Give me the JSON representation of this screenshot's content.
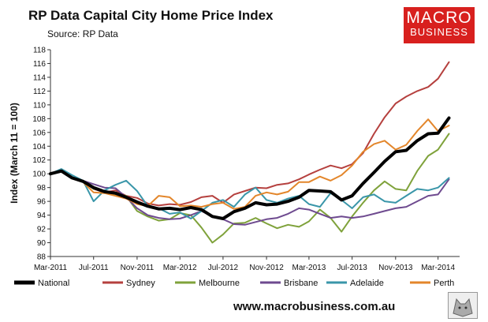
{
  "header": {
    "title": "RP Data Capital City Home Price Index",
    "source": "Source: RP Data"
  },
  "brand": {
    "line1": "MACRO",
    "line2": "BUSINESS"
  },
  "footer": {
    "website": "www.macrobusiness.com.au"
  },
  "chart_data": {
    "type": "line",
    "title": "RP Data Capital City Home Price Index",
    "subtitle": "Source: RP Data",
    "ylabel": "Index (March 11 = 100)",
    "xlabel": "",
    "ylim": [
      88,
      118
    ],
    "yticks": [
      88,
      90,
      92,
      94,
      96,
      98,
      100,
      102,
      104,
      106,
      108,
      110,
      112,
      114,
      116,
      118
    ],
    "xlim": [
      "2011-03-01",
      "2014-05-01"
    ],
    "xticks": [
      {
        "date": "2011-03-01",
        "label": "Mar-2011"
      },
      {
        "date": "2011-07-01",
        "label": "Jul-2011"
      },
      {
        "date": "2011-11-01",
        "label": "Nov-2011"
      },
      {
        "date": "2012-03-01",
        "label": "Mar-2012"
      },
      {
        "date": "2012-07-01",
        "label": "Jul-2012"
      },
      {
        "date": "2012-11-01",
        "label": "Nov-2012"
      },
      {
        "date": "2013-03-01",
        "label": "Mar-2013"
      },
      {
        "date": "2013-07-01",
        "label": "Jul-2013"
      },
      {
        "date": "2013-11-01",
        "label": "Nov-2013"
      },
      {
        "date": "2014-03-01",
        "label": "Mar-2014"
      }
    ],
    "grid": false,
    "legend_position": "bottom",
    "series": [
      {
        "name": "Sydney",
        "color": "#b5403e",
        "width": 2,
        "points": [
          [
            "2011-03-01",
            100
          ],
          [
            "2011-04-01",
            100.6
          ],
          [
            "2011-05-01",
            99.5
          ],
          [
            "2011-06-01",
            98.8
          ],
          [
            "2011-07-01",
            97.8
          ],
          [
            "2011-08-01",
            97.3
          ],
          [
            "2011-09-01",
            97.6
          ],
          [
            "2011-10-01",
            96.8
          ],
          [
            "2011-11-01",
            96.5
          ],
          [
            "2011-12-01",
            95.7
          ],
          [
            "2012-01-01",
            95.4
          ],
          [
            "2012-02-01",
            95.6
          ],
          [
            "2012-03-01",
            95.5
          ],
          [
            "2012-04-01",
            95.9
          ],
          [
            "2012-05-01",
            96.6
          ],
          [
            "2012-06-01",
            96.8
          ],
          [
            "2012-07-01",
            95.8
          ],
          [
            "2012-08-01",
            97.0
          ],
          [
            "2012-09-01",
            97.5
          ],
          [
            "2012-10-01",
            98.0
          ],
          [
            "2012-11-01",
            97.9
          ],
          [
            "2012-12-01",
            98.4
          ],
          [
            "2013-01-01",
            98.6
          ],
          [
            "2013-02-01",
            99.2
          ],
          [
            "2013-03-01",
            99.9
          ],
          [
            "2013-04-01",
            100.6
          ],
          [
            "2013-05-01",
            101.2
          ],
          [
            "2013-06-01",
            100.8
          ],
          [
            "2013-07-01",
            101.4
          ],
          [
            "2013-08-01",
            103.0
          ],
          [
            "2013-09-01",
            105.8
          ],
          [
            "2013-10-01",
            108.2
          ],
          [
            "2013-11-01",
            110.2
          ],
          [
            "2013-12-01",
            111.2
          ],
          [
            "2014-01-01",
            112.0
          ],
          [
            "2014-02-01",
            112.6
          ],
          [
            "2014-03-01",
            113.8
          ],
          [
            "2014-04-01",
            116.2
          ]
        ]
      },
      {
        "name": "Melbourne",
        "color": "#7fa23b",
        "width": 2,
        "points": [
          [
            "2011-03-01",
            100
          ],
          [
            "2011-04-01",
            100.3
          ],
          [
            "2011-05-01",
            99.4
          ],
          [
            "2011-06-01",
            98.9
          ],
          [
            "2011-07-01",
            97.8
          ],
          [
            "2011-08-01",
            97.5
          ],
          [
            "2011-09-01",
            97.0
          ],
          [
            "2011-10-01",
            96.8
          ],
          [
            "2011-11-01",
            94.6
          ],
          [
            "2011-12-01",
            93.8
          ],
          [
            "2012-01-01",
            93.2
          ],
          [
            "2012-02-01",
            93.4
          ],
          [
            "2012-03-01",
            94.3
          ],
          [
            "2012-04-01",
            94.0
          ],
          [
            "2012-05-01",
            92.2
          ],
          [
            "2012-06-01",
            90.0
          ],
          [
            "2012-07-01",
            91.2
          ],
          [
            "2012-08-01",
            92.8
          ],
          [
            "2012-09-01",
            92.9
          ],
          [
            "2012-10-01",
            93.6
          ],
          [
            "2012-11-01",
            92.8
          ],
          [
            "2012-12-01",
            92.1
          ],
          [
            "2013-01-01",
            92.6
          ],
          [
            "2013-02-01",
            92.3
          ],
          [
            "2013-03-01",
            93.1
          ],
          [
            "2013-04-01",
            94.8
          ],
          [
            "2013-05-01",
            93.6
          ],
          [
            "2013-06-01",
            91.6
          ],
          [
            "2013-07-01",
            93.8
          ],
          [
            "2013-08-01",
            95.8
          ],
          [
            "2013-09-01",
            97.6
          ],
          [
            "2013-10-01",
            98.9
          ],
          [
            "2013-11-01",
            97.8
          ],
          [
            "2013-12-01",
            97.6
          ],
          [
            "2014-01-01",
            100.4
          ],
          [
            "2014-02-01",
            102.6
          ],
          [
            "2014-03-01",
            103.5
          ],
          [
            "2014-04-01",
            105.8
          ]
        ]
      },
      {
        "name": "Brisbane",
        "color": "#6e4a8f",
        "width": 2,
        "points": [
          [
            "2011-03-01",
            100
          ],
          [
            "2011-04-01",
            100.6
          ],
          [
            "2011-05-01",
            99.4
          ],
          [
            "2011-06-01",
            99.0
          ],
          [
            "2011-07-01",
            98.5
          ],
          [
            "2011-08-01",
            98.0
          ],
          [
            "2011-09-01",
            97.9
          ],
          [
            "2011-10-01",
            96.6
          ],
          [
            "2011-11-01",
            95.0
          ],
          [
            "2011-12-01",
            94.0
          ],
          [
            "2012-01-01",
            93.6
          ],
          [
            "2012-02-01",
            93.4
          ],
          [
            "2012-03-01",
            93.5
          ],
          [
            "2012-04-01",
            94.0
          ],
          [
            "2012-05-01",
            94.6
          ],
          [
            "2012-06-01",
            93.8
          ],
          [
            "2012-07-01",
            93.4
          ],
          [
            "2012-08-01",
            92.7
          ],
          [
            "2012-09-01",
            92.6
          ],
          [
            "2012-10-01",
            93.0
          ],
          [
            "2012-11-01",
            93.4
          ],
          [
            "2012-12-01",
            93.6
          ],
          [
            "2013-01-01",
            94.2
          ],
          [
            "2013-02-01",
            95.0
          ],
          [
            "2013-03-01",
            94.8
          ],
          [
            "2013-04-01",
            94.2
          ],
          [
            "2013-05-01",
            93.6
          ],
          [
            "2013-06-01",
            93.8
          ],
          [
            "2013-07-01",
            93.6
          ],
          [
            "2013-08-01",
            93.8
          ],
          [
            "2013-09-01",
            94.2
          ],
          [
            "2013-10-01",
            94.6
          ],
          [
            "2013-11-01",
            95.0
          ],
          [
            "2013-12-01",
            95.2
          ],
          [
            "2014-01-01",
            96.0
          ],
          [
            "2014-02-01",
            96.8
          ],
          [
            "2014-03-01",
            97.0
          ],
          [
            "2014-04-01",
            99.2
          ]
        ]
      },
      {
        "name": "Adelaide",
        "color": "#3a96a9",
        "width": 2,
        "points": [
          [
            "2011-03-01",
            100
          ],
          [
            "2011-04-01",
            100.7
          ],
          [
            "2011-05-01",
            99.8
          ],
          [
            "2011-06-01",
            99.0
          ],
          [
            "2011-07-01",
            96.0
          ],
          [
            "2011-08-01",
            97.6
          ],
          [
            "2011-09-01",
            98.4
          ],
          [
            "2011-10-01",
            99.0
          ],
          [
            "2011-11-01",
            97.5
          ],
          [
            "2011-12-01",
            95.3
          ],
          [
            "2012-01-01",
            95.0
          ],
          [
            "2012-02-01",
            94.2
          ],
          [
            "2012-03-01",
            94.4
          ],
          [
            "2012-04-01",
            93.5
          ],
          [
            "2012-05-01",
            94.6
          ],
          [
            "2012-06-01",
            95.8
          ],
          [
            "2012-07-01",
            96.2
          ],
          [
            "2012-08-01",
            95.2
          ],
          [
            "2012-09-01",
            97.0
          ],
          [
            "2012-10-01",
            98.0
          ],
          [
            "2012-11-01",
            96.2
          ],
          [
            "2012-12-01",
            95.8
          ],
          [
            "2013-01-01",
            96.4
          ],
          [
            "2013-02-01",
            96.8
          ],
          [
            "2013-03-01",
            95.6
          ],
          [
            "2013-04-01",
            95.2
          ],
          [
            "2013-05-01",
            97.2
          ],
          [
            "2013-06-01",
            96.2
          ],
          [
            "2013-07-01",
            95.0
          ],
          [
            "2013-08-01",
            96.6
          ],
          [
            "2013-09-01",
            97.0
          ],
          [
            "2013-10-01",
            96.0
          ],
          [
            "2013-11-01",
            95.8
          ],
          [
            "2013-12-01",
            96.8
          ],
          [
            "2014-01-01",
            97.8
          ],
          [
            "2014-02-01",
            97.6
          ],
          [
            "2014-03-01",
            98.0
          ],
          [
            "2014-04-01",
            99.4
          ]
        ]
      },
      {
        "name": "Perth",
        "color": "#e3862b",
        "width": 2,
        "points": [
          [
            "2011-03-01",
            100
          ],
          [
            "2011-04-01",
            100.5
          ],
          [
            "2011-05-01",
            99.3
          ],
          [
            "2011-06-01",
            98.8
          ],
          [
            "2011-07-01",
            97.3
          ],
          [
            "2011-08-01",
            97.2
          ],
          [
            "2011-09-01",
            96.8
          ],
          [
            "2011-10-01",
            96.4
          ],
          [
            "2011-11-01",
            95.6
          ],
          [
            "2011-12-01",
            95.3
          ],
          [
            "2012-01-01",
            96.8
          ],
          [
            "2012-02-01",
            96.6
          ],
          [
            "2012-03-01",
            95.3
          ],
          [
            "2012-04-01",
            95.4
          ],
          [
            "2012-05-01",
            95.2
          ],
          [
            "2012-06-01",
            95.6
          ],
          [
            "2012-07-01",
            95.8
          ],
          [
            "2012-08-01",
            94.9
          ],
          [
            "2012-09-01",
            95.2
          ],
          [
            "2012-10-01",
            96.8
          ],
          [
            "2012-11-01",
            97.3
          ],
          [
            "2012-12-01",
            97.0
          ],
          [
            "2013-01-01",
            97.4
          ],
          [
            "2013-02-01",
            98.8
          ],
          [
            "2013-03-01",
            98.8
          ],
          [
            "2013-04-01",
            99.6
          ],
          [
            "2013-05-01",
            99.0
          ],
          [
            "2013-06-01",
            99.8
          ],
          [
            "2013-07-01",
            101.2
          ],
          [
            "2013-08-01",
            103.2
          ],
          [
            "2013-09-01",
            104.3
          ],
          [
            "2013-10-01",
            104.8
          ],
          [
            "2013-11-01",
            103.5
          ],
          [
            "2013-12-01",
            104.2
          ],
          [
            "2014-01-01",
            106.2
          ],
          [
            "2014-02-01",
            107.9
          ],
          [
            "2014-03-01",
            106.2
          ],
          [
            "2014-04-01",
            107.0
          ]
        ]
      },
      {
        "name": "National",
        "color": "#000000",
        "width": 4,
        "points": [
          [
            "2011-03-01",
            100
          ],
          [
            "2011-04-01",
            100.4
          ],
          [
            "2011-05-01",
            99.4
          ],
          [
            "2011-06-01",
            98.9
          ],
          [
            "2011-07-01",
            98.0
          ],
          [
            "2011-08-01",
            97.4
          ],
          [
            "2011-09-01",
            97.2
          ],
          [
            "2011-10-01",
            96.6
          ],
          [
            "2011-11-01",
            95.9
          ],
          [
            "2011-12-01",
            95.3
          ],
          [
            "2012-01-01",
            94.9
          ],
          [
            "2012-02-01",
            95.0
          ],
          [
            "2012-03-01",
            94.8
          ],
          [
            "2012-04-01",
            95.1
          ],
          [
            "2012-05-01",
            94.8
          ],
          [
            "2012-06-01",
            93.8
          ],
          [
            "2012-07-01",
            93.5
          ],
          [
            "2012-08-01",
            94.5
          ],
          [
            "2012-09-01",
            95.0
          ],
          [
            "2012-10-01",
            95.8
          ],
          [
            "2012-11-01",
            95.5
          ],
          [
            "2012-12-01",
            95.6
          ],
          [
            "2013-01-01",
            96.0
          ],
          [
            "2013-02-01",
            96.6
          ],
          [
            "2013-03-01",
            97.6
          ],
          [
            "2013-04-01",
            97.5
          ],
          [
            "2013-05-01",
            97.4
          ],
          [
            "2013-06-01",
            96.2
          ],
          [
            "2013-07-01",
            96.8
          ],
          [
            "2013-08-01",
            98.6
          ],
          [
            "2013-09-01",
            100.2
          ],
          [
            "2013-10-01",
            101.8
          ],
          [
            "2013-11-01",
            103.2
          ],
          [
            "2013-12-01",
            103.4
          ],
          [
            "2014-01-01",
            104.8
          ],
          [
            "2014-02-01",
            105.8
          ],
          [
            "2014-03-01",
            105.9
          ],
          [
            "2014-04-01",
            108.1
          ]
        ]
      }
    ],
    "legend_order": [
      "National",
      "Sydney",
      "Melbourne",
      "Brisbane",
      "Adelaide",
      "Perth"
    ]
  }
}
